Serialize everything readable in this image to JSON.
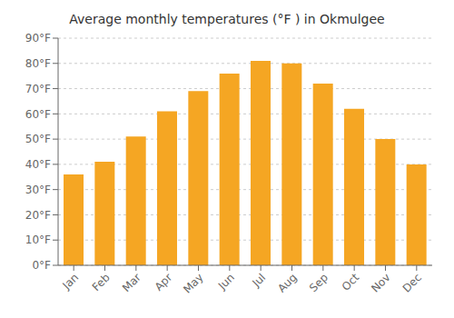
{
  "chart_data": {
    "type": "bar",
    "title": "Average monthly temperatures (°F ) in Okmulgee",
    "categories": [
      "Jan",
      "Feb",
      "Mar",
      "Apr",
      "May",
      "Jun",
      "Jul",
      "Aug",
      "Sep",
      "Oct",
      "Nov",
      "Dec"
    ],
    "values": [
      36,
      41,
      51,
      61,
      69,
      76,
      81,
      80,
      72,
      62,
      50,
      40
    ],
    "color": "#F5A623",
    "ylim": [
      0,
      90
    ],
    "yticks": [
      {
        "value": 0,
        "label": "0°F"
      },
      {
        "value": 10,
        "label": "10°F"
      },
      {
        "value": 20,
        "label": "20°F"
      },
      {
        "value": 30,
        "label": "30°F"
      },
      {
        "value": 40,
        "label": "40°F"
      },
      {
        "value": 50,
        "label": "50°F"
      },
      {
        "value": 60,
        "label": "60°F"
      },
      {
        "value": 70,
        "label": "70°F"
      },
      {
        "value": 80,
        "label": "80°F"
      },
      {
        "value": 90,
        "label": "90°F"
      }
    ],
    "grid": true
  }
}
